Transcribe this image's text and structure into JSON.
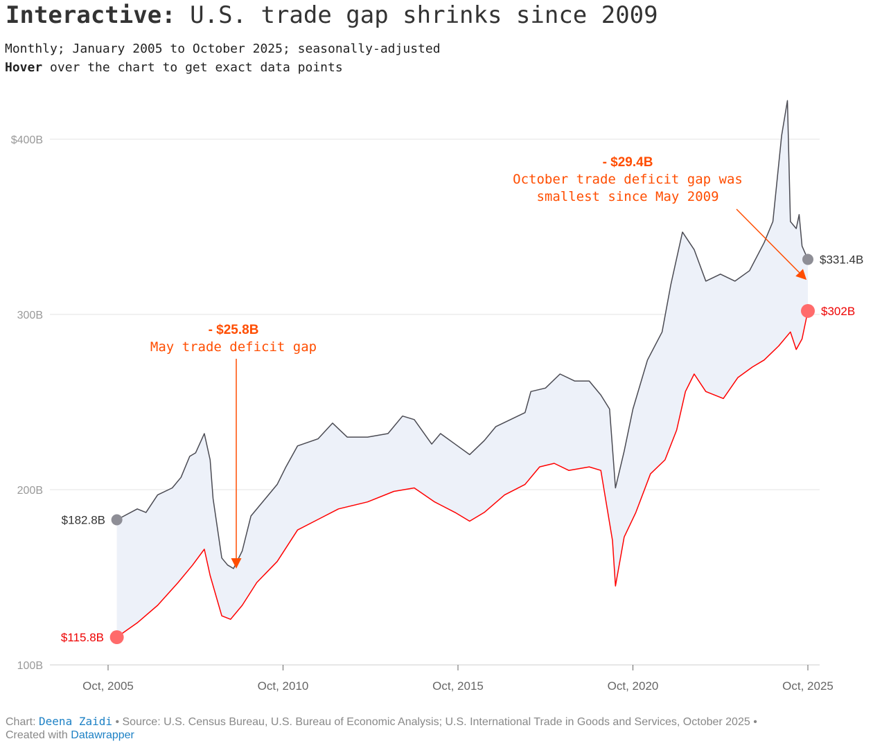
{
  "title_bold": "Interactive:",
  "title_rest": "U.S. trade gap shrinks since 2009",
  "subtitle": "Monthly; January 2005 to October 2025; seasonally-adjusted",
  "hint_bold": "Hover",
  "hint_rest": "over the chart to get exact data points",
  "footer": {
    "chart_label": "Chart:",
    "author": "Deena Zaidi",
    "source": "• Source: U.S. Census Bureau, U.S. Bureau of Economic Analysis; U.S. International Trade in Goods and Services, October 2025 •",
    "created": "Created with",
    "tool": "Datawrapper"
  },
  "colors": {
    "upper": "#4a4a52",
    "lower": "#ff0000",
    "fill": "#edf1f9",
    "annotation": "#ff4d00",
    "upper_dot": "#8e8e96",
    "lower_dot": "#ff6b6b",
    "grid": "#e3e3e3",
    "tick": "#999999"
  },
  "chart_data": {
    "type": "area",
    "ylim": [
      100,
      420
    ],
    "yticks": [
      "100B",
      "200B",
      "300B",
      "$400B"
    ],
    "ytick_values": [
      100,
      200,
      300,
      400
    ],
    "xticks": [
      "Oct, 2005",
      "Oct, 2010",
      "Oct, 2015",
      "Oct, 2020",
      "Oct, 2025"
    ],
    "xtick_dates": [
      "2005-10",
      "2010-10",
      "2015-10",
      "2020-10",
      "2025-10"
    ],
    "grid": true,
    "series": [
      {
        "key": "upper",
        "start_label": "$182.8B",
        "end_label": "$331.4B",
        "points": [
          [
            "2006-01",
            182.8
          ],
          [
            "2006-08",
            189
          ],
          [
            "2006-11",
            187
          ],
          [
            "2007-03",
            197
          ],
          [
            "2007-08",
            201
          ],
          [
            "2007-11",
            207
          ],
          [
            "2008-02",
            219
          ],
          [
            "2008-04",
            221
          ],
          [
            "2008-07",
            232
          ],
          [
            "2008-09",
            217
          ],
          [
            "2008-10",
            195
          ],
          [
            "2009-01",
            161
          ],
          [
            "2009-03",
            157
          ],
          [
            "2009-05",
            155
          ],
          [
            "2009-08",
            165
          ],
          [
            "2009-11",
            185
          ],
          [
            "2010-04",
            195
          ],
          [
            "2010-08",
            203
          ],
          [
            "2010-11",
            213
          ],
          [
            "2011-03",
            225
          ],
          [
            "2011-10",
            229
          ],
          [
            "2012-03",
            238
          ],
          [
            "2012-08",
            230
          ],
          [
            "2013-03",
            230
          ],
          [
            "2013-10",
            232
          ],
          [
            "2014-03",
            242
          ],
          [
            "2014-07",
            240
          ],
          [
            "2015-01",
            226
          ],
          [
            "2015-04",
            232
          ],
          [
            "2015-09",
            226
          ],
          [
            "2016-02",
            220
          ],
          [
            "2016-07",
            228
          ],
          [
            "2016-11",
            236
          ],
          [
            "2017-04",
            240
          ],
          [
            "2017-09",
            244
          ],
          [
            "2017-11",
            256
          ],
          [
            "2018-04",
            258
          ],
          [
            "2018-09",
            266
          ],
          [
            "2019-02",
            262
          ],
          [
            "2019-07",
            262
          ],
          [
            "2019-11",
            254
          ],
          [
            "2020-02",
            246
          ],
          [
            "2020-04",
            201
          ],
          [
            "2020-07",
            222
          ],
          [
            "2020-10",
            246
          ],
          [
            "2021-03",
            274
          ],
          [
            "2021-08",
            290
          ],
          [
            "2021-11",
            317
          ],
          [
            "2022-03",
            347
          ],
          [
            "2022-07",
            337
          ],
          [
            "2022-11",
            319
          ],
          [
            "2023-04",
            323
          ],
          [
            "2023-09",
            319
          ],
          [
            "2024-02",
            325
          ],
          [
            "2024-07",
            341
          ],
          [
            "2024-10",
            353
          ],
          [
            "2025-01",
            402
          ],
          [
            "2025-03",
            422
          ],
          [
            "2025-04",
            353
          ],
          [
            "2025-06",
            349
          ],
          [
            "2025-07",
            357
          ],
          [
            "2025-08",
            339
          ],
          [
            "2025-10",
            331.4
          ]
        ]
      },
      {
        "key": "lower",
        "start_label": "$115.8B",
        "end_label": "$302B",
        "points": [
          [
            "2006-01",
            115.8
          ],
          [
            "2006-08",
            124
          ],
          [
            "2007-03",
            134
          ],
          [
            "2007-10",
            147
          ],
          [
            "2008-03",
            157
          ],
          [
            "2008-07",
            166
          ],
          [
            "2008-09",
            151
          ],
          [
            "2009-01",
            128
          ],
          [
            "2009-04",
            126
          ],
          [
            "2009-08",
            134
          ],
          [
            "2010-01",
            147
          ],
          [
            "2010-08",
            159
          ],
          [
            "2011-03",
            177
          ],
          [
            "2011-10",
            183
          ],
          [
            "2012-05",
            189
          ],
          [
            "2013-03",
            193
          ],
          [
            "2013-12",
            199
          ],
          [
            "2014-07",
            201
          ],
          [
            "2015-02",
            193
          ],
          [
            "2015-09",
            187
          ],
          [
            "2016-02",
            182
          ],
          [
            "2016-07",
            187
          ],
          [
            "2017-02",
            197
          ],
          [
            "2017-09",
            203
          ],
          [
            "2018-02",
            213
          ],
          [
            "2018-07",
            215
          ],
          [
            "2018-12",
            211
          ],
          [
            "2019-07",
            213
          ],
          [
            "2019-11",
            211
          ],
          [
            "2020-03",
            171
          ],
          [
            "2020-04",
            145
          ],
          [
            "2020-07",
            173
          ],
          [
            "2020-11",
            187
          ],
          [
            "2021-04",
            209
          ],
          [
            "2021-09",
            217
          ],
          [
            "2022-01",
            234
          ],
          [
            "2022-04",
            256
          ],
          [
            "2022-07",
            266
          ],
          [
            "2022-11",
            256
          ],
          [
            "2023-05",
            252
          ],
          [
            "2023-10",
            264
          ],
          [
            "2024-03",
            270
          ],
          [
            "2024-07",
            274
          ],
          [
            "2024-12",
            282
          ],
          [
            "2025-04",
            290
          ],
          [
            "2025-06",
            280
          ],
          [
            "2025-08",
            286
          ],
          [
            "2025-10",
            302
          ]
        ]
      }
    ],
    "annotations": [
      {
        "value": "- $25.8B",
        "text": [
          "May trade deficit gap"
        ],
        "date": "2009-05"
      },
      {
        "value": "- $29.4B",
        "text": [
          "October trade deficit gap was",
          "smallest since May 2009"
        ],
        "date": "2025-10"
      }
    ]
  }
}
